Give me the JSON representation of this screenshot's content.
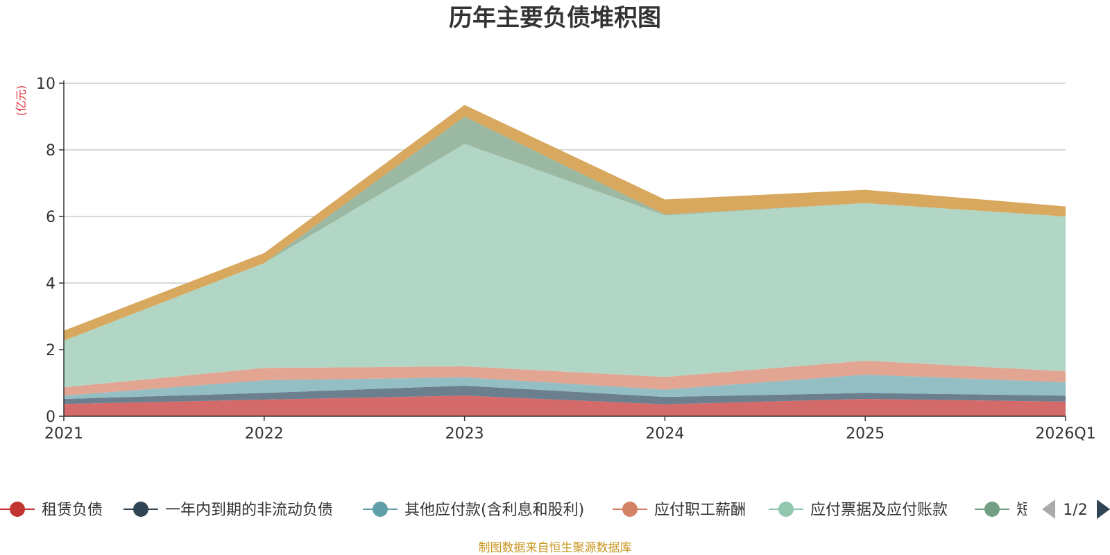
{
  "chart_data": {
    "type": "area",
    "stacked": true,
    "title": "历年主要负债堆积图",
    "unit_label": "(亿元)",
    "categories": [
      "2021",
      "2022",
      "2023",
      "2024",
      "2025",
      "2026Q1"
    ],
    "ylim": [
      0,
      10
    ],
    "yticks": [
      0,
      2,
      4,
      6,
      8,
      10
    ],
    "grid": true,
    "series": [
      {
        "name": "租赁负债",
        "color": "#d46a6a",
        "values": [
          0.37,
          0.5,
          0.62,
          0.36,
          0.52,
          0.44
        ]
      },
      {
        "name": "一年内到期的非流动负债",
        "color": "#6b7f8e",
        "values": [
          0.15,
          0.2,
          0.3,
          0.22,
          0.18,
          0.18
        ]
      },
      {
        "name": "其他应付款(含利息和股利)",
        "color": "#92bec4",
        "values": [
          0.1,
          0.38,
          0.25,
          0.22,
          0.55,
          0.4
        ]
      },
      {
        "name": "应付职工薪酬",
        "color": "#e2a592",
        "values": [
          0.25,
          0.37,
          0.33,
          0.38,
          0.42,
          0.33
        ]
      },
      {
        "name": "应付票据及应付账款",
        "color": "#b1d6c5",
        "values": [
          1.4,
          3.15,
          6.68,
          4.85,
          4.73,
          4.65
        ]
      },
      {
        "name": "短期借款",
        "color": "#9bb8a2",
        "values": [
          0.0,
          0.0,
          0.82,
          0.03,
          0.0,
          0.0
        ]
      },
      {
        "name": "",
        "color": "#d8a85e",
        "values": [
          0.3,
          0.3,
          0.35,
          0.45,
          0.4,
          0.3
        ]
      }
    ],
    "legend": {
      "position": "bottom",
      "visible_labels": [
        "租赁负债",
        "一年内到期的非流动负债",
        "其他应付款(含利息和股利)",
        "应付职工薪酬",
        "应付票据及应付账款",
        "短"
      ],
      "colors": [
        "#c23531",
        "#2f4554",
        "#61a0a8",
        "#d48265",
        "#91c7ae",
        "#749f83"
      ],
      "page": "1/2"
    }
  },
  "source_note": "制图数据来自恒生聚源数据库"
}
